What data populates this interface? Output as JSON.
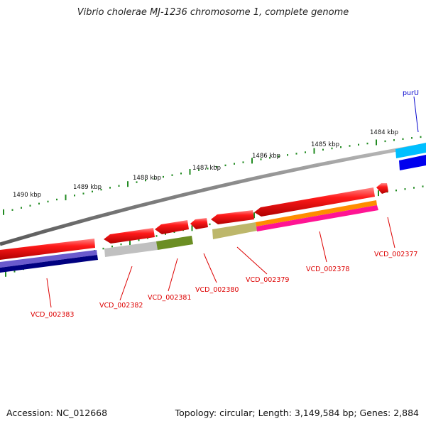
{
  "title": "Vibrio cholerae MJ-1236 chromosome 1, complete genome",
  "footer": {
    "accession": "Accession: NC_012668",
    "summary": "Topology: circular; Length: 3,149,584 bp; Genes: 2,884"
  },
  "scale_labels": [
    "1490 kbp",
    "1489 kbp",
    "1488 kbp",
    "1487 kbp",
    "1486 kbp",
    "1485 kbp",
    "1484 kbp"
  ],
  "gene_labels": [
    {
      "name": "purU",
      "color": "#0000cc"
    },
    {
      "name": "VCD_002377",
      "color": "#dd0000"
    },
    {
      "name": "VCD_002378",
      "color": "#dd0000"
    },
    {
      "name": "VCD_002379",
      "color": "#dd0000"
    },
    {
      "name": "VCD_002380",
      "color": "#dd0000"
    },
    {
      "name": "VCD_002381",
      "color": "#dd0000"
    },
    {
      "name": "VCD_002382",
      "color": "#dd0000"
    },
    {
      "name": "VCD_002383",
      "color": "#dd0000"
    }
  ],
  "colors": {
    "cds": "#ee0000",
    "backbone": "#808080",
    "gc_skew_ticks": "#228b22",
    "purU_upper": "#00bfff",
    "purU_lower": "#0000ee"
  }
}
